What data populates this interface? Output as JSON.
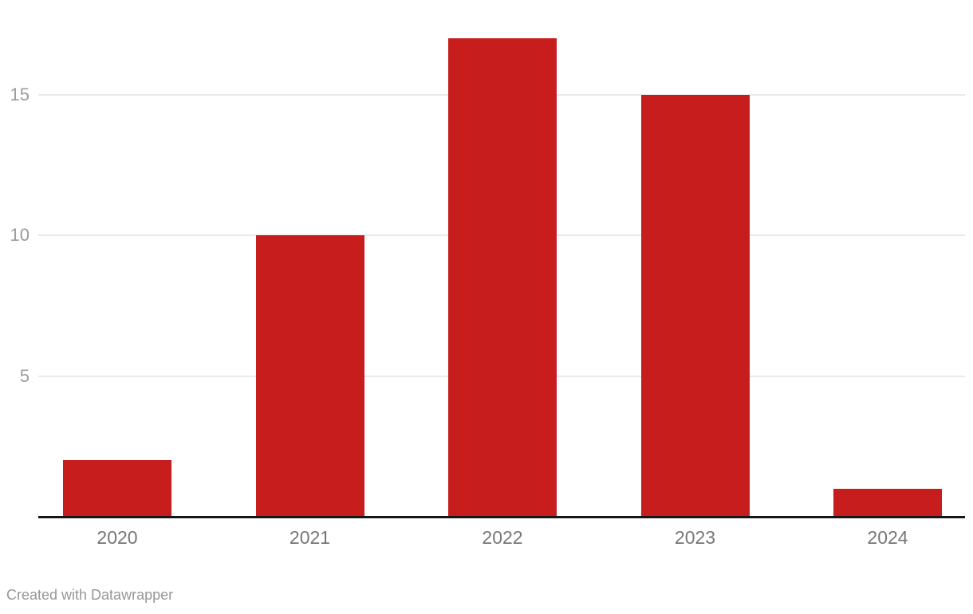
{
  "chart_data": {
    "type": "bar",
    "categories": [
      "2020",
      "2021",
      "2022",
      "2023",
      "2024"
    ],
    "values": [
      2,
      10,
      17,
      15,
      1
    ],
    "title": "",
    "subtitle": "",
    "xlabel": "",
    "ylabel": "",
    "ylim": [
      0,
      17
    ],
    "yticks": [
      5,
      10,
      15
    ],
    "grid": true,
    "legend": false,
    "bar_color": "#c71e1d"
  },
  "footer": {
    "label": "Created with Datawrapper"
  },
  "colors": {
    "bar": "#c71e1d",
    "gridline": "#e9e9e9",
    "axis_line": "#161616",
    "y_tick_label": "#9c9c9c",
    "x_tick_label": "#767676",
    "footer_text": "#979797",
    "background": "#ffffff"
  }
}
